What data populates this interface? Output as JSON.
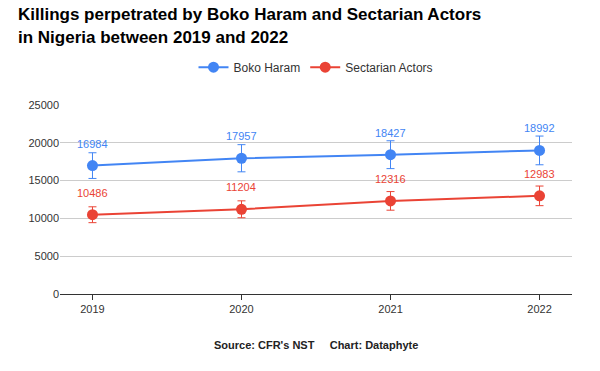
{
  "chart_data": {
    "type": "line",
    "title": "Killings perpetrated by Boko Haram and Sectarian Actors\nin Nigeria between 2019 and 2022",
    "categories": [
      "2019",
      "2020",
      "2021",
      "2022"
    ],
    "series": [
      {
        "name": "Boko Haram",
        "color": "#4285f4",
        "values": [
          16984,
          17957,
          18427,
          18992
        ],
        "errors": [
          1698,
          1796,
          1843,
          1899
        ],
        "marker": "circle",
        "line_style": "solid"
      },
      {
        "name": "Sectarian Actors",
        "color": "#ea4335",
        "values": [
          10486,
          11204,
          12316,
          12983
        ],
        "errors": [
          1049,
          1120,
          1232,
          1298
        ],
        "marker": "circle",
        "line_style": "solid"
      }
    ],
    "ylim": [
      0,
      25000
    ],
    "yticks": [
      0,
      5000,
      10000,
      15000,
      20000,
      25000
    ],
    "grid": true,
    "legend": "top",
    "data_labels": true,
    "annotations": [
      "Source: CFR's NST",
      "Chart: Dataphyte"
    ]
  }
}
